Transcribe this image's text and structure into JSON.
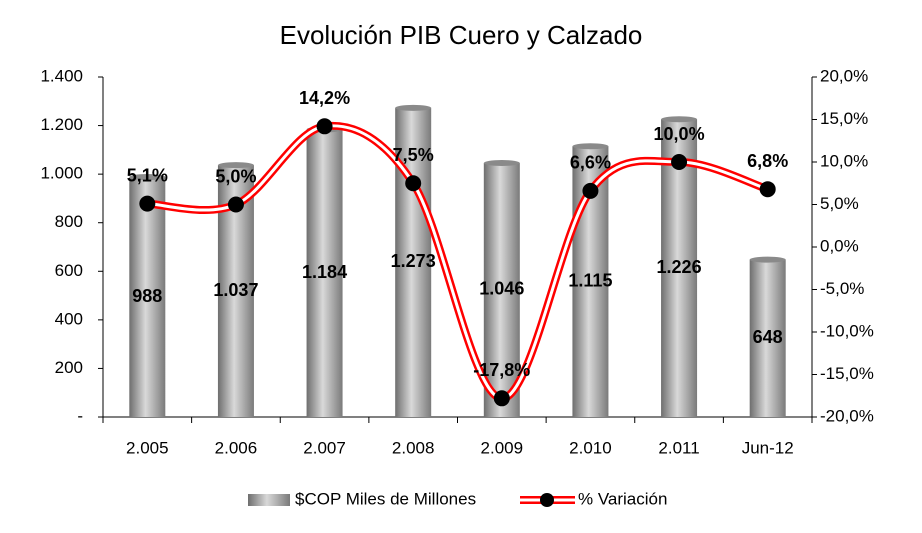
{
  "chart_data": {
    "type": "bar-line",
    "title": "Evolución PIB Cuero y Calzado",
    "categories": [
      "2.005",
      "2.006",
      "2.007",
      "2.008",
      "2.009",
      "2.010",
      "2.011",
      "Jun-12"
    ],
    "series": [
      {
        "name": "$COP Miles de Millones",
        "type": "bar",
        "color": "#999999",
        "values": [
          988,
          1037,
          1184,
          1273,
          1046,
          1115,
          1226,
          648
        ],
        "value_labels": [
          "988",
          "1.037",
          "1.184",
          "1.273",
          "1.046",
          "1.115",
          "1.226",
          "648"
        ]
      },
      {
        "name": "% Variación",
        "type": "line",
        "axis": "y2",
        "color": "#ff0000",
        "values": [
          5.1,
          5.0,
          14.2,
          7.5,
          -17.8,
          6.6,
          10.0,
          6.8
        ],
        "value_labels": [
          "5,1%",
          "5,0%",
          "14,2%",
          "7,5%",
          "-17,8%",
          "6,6%",
          "10,0%",
          "6,8%"
        ]
      }
    ],
    "ylim": [
      0,
      1400
    ],
    "yticks": [
      {
        "value": 0,
        "label": "-"
      },
      200,
      400,
      600,
      800,
      {
        "value": 1000,
        "label": "1.000"
      },
      {
        "value": 1200,
        "label": "1.200"
      },
      {
        "value": 1400,
        "label": "1.400"
      }
    ],
    "y2lim": [
      -20,
      20
    ],
    "y2ticks": [
      {
        "value": -20,
        "label": "-20,0%"
      },
      {
        "value": -15,
        "label": "-15,0%"
      },
      {
        "value": -10,
        "label": "-10,0%"
      },
      {
        "value": -5,
        "label": "-5,0%"
      },
      {
        "value": 0,
        "label": "0,0%"
      },
      {
        "value": 5,
        "label": "5,0%"
      },
      {
        "value": 10,
        "label": "10,0%"
      },
      {
        "value": 15,
        "label": "15,0%"
      },
      {
        "value": 20,
        "label": "20,0%"
      }
    ],
    "legend": "bottom",
    "grid": false
  }
}
